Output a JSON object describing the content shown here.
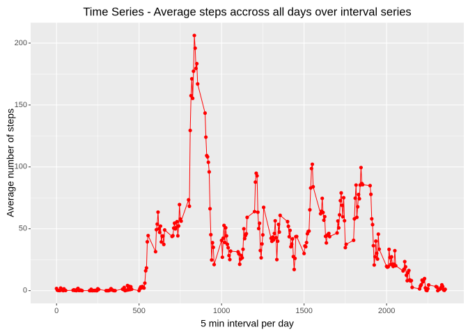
{
  "chart_data": {
    "type": "line",
    "title": "Time Series - Average steps accross all days over interval series",
    "xlabel": "5 min interval per day",
    "ylabel": "Average number of steps",
    "x": [
      0,
      5,
      10,
      15,
      20,
      25,
      30,
      35,
      40,
      45,
      50,
      55,
      100,
      105,
      110,
      115,
      120,
      125,
      130,
      135,
      140,
      145,
      150,
      155,
      200,
      205,
      210,
      215,
      220,
      225,
      230,
      235,
      240,
      245,
      250,
      255,
      300,
      305,
      310,
      315,
      320,
      325,
      330,
      335,
      340,
      345,
      350,
      355,
      400,
      405,
      410,
      415,
      420,
      425,
      430,
      435,
      440,
      445,
      450,
      455,
      500,
      505,
      510,
      515,
      520,
      525,
      530,
      535,
      540,
      545,
      550,
      555,
      600,
      605,
      610,
      615,
      620,
      625,
      630,
      635,
      640,
      645,
      650,
      655,
      700,
      705,
      710,
      715,
      720,
      725,
      730,
      735,
      740,
      745,
      750,
      755,
      800,
      805,
      810,
      815,
      820,
      825,
      830,
      835,
      840,
      845,
      850,
      855,
      900,
      905,
      910,
      915,
      920,
      925,
      930,
      935,
      940,
      945,
      950,
      955,
      1000,
      1005,
      1010,
      1015,
      1020,
      1025,
      1030,
      1035,
      1040,
      1045,
      1050,
      1055,
      1100,
      1105,
      1110,
      1115,
      1120,
      1125,
      1130,
      1135,
      1140,
      1145,
      1150,
      1155,
      1200,
      1205,
      1210,
      1215,
      1220,
      1225,
      1230,
      1235,
      1240,
      1245,
      1250,
      1255,
      1300,
      1305,
      1310,
      1315,
      1320,
      1325,
      1330,
      1335,
      1340,
      1345,
      1350,
      1355,
      1400,
      1405,
      1410,
      1415,
      1420,
      1425,
      1430,
      1435,
      1440,
      1445,
      1450,
      1455,
      1500,
      1505,
      1510,
      1515,
      1520,
      1525,
      1530,
      1535,
      1540,
      1545,
      1550,
      1555,
      1600,
      1605,
      1610,
      1615,
      1620,
      1625,
      1630,
      1635,
      1640,
      1645,
      1650,
      1655,
      1700,
      1705,
      1710,
      1715,
      1720,
      1725,
      1730,
      1735,
      1740,
      1745,
      1750,
      1755,
      1800,
      1805,
      1810,
      1815,
      1820,
      1825,
      1830,
      1835,
      1840,
      1845,
      1850,
      1855,
      1900,
      1905,
      1910,
      1915,
      1920,
      1925,
      1930,
      1935,
      1940,
      1945,
      1950,
      1955,
      2000,
      2005,
      2010,
      2015,
      2020,
      2025,
      2030,
      2035,
      2040,
      2045,
      2050,
      2055,
      2100,
      2105,
      2110,
      2115,
      2120,
      2125,
      2130,
      2135,
      2140,
      2145,
      2150,
      2155,
      2200,
      2205,
      2210,
      2215,
      2220,
      2225,
      2230,
      2235,
      2240,
      2245,
      2250,
      2255,
      2300,
      2305,
      2310,
      2315,
      2320,
      2325,
      2330,
      2335,
      2340,
      2345,
      2350,
      2355
    ],
    "series": [
      {
        "name": "steps",
        "color": "#ff0000",
        "values": [
          1.72,
          0.34,
          0.13,
          0.15,
          0.08,
          2.09,
          0.53,
          0.87,
          0,
          1.47,
          0.3,
          0.13,
          0.32,
          0.68,
          0.15,
          0.34,
          0,
          1.11,
          1.83,
          0.17,
          0.17,
          0.38,
          0.26,
          0,
          0,
          0,
          1.13,
          0,
          0,
          0.13,
          0,
          0.23,
          0,
          0,
          1.55,
          0.94,
          0,
          0,
          0,
          0,
          0.21,
          0.62,
          1.62,
          0.58,
          0.49,
          0.08,
          0,
          0,
          1.19,
          0.94,
          2.57,
          0,
          0.34,
          0.36,
          4.11,
          0.66,
          3.49,
          0.83,
          3.11,
          1.11,
          0,
          1.57,
          3,
          2.25,
          3.32,
          2.96,
          2.09,
          6.06,
          16.02,
          18.34,
          39.45,
          44.49,
          31.49,
          49.26,
          53.77,
          63.45,
          49.96,
          47.08,
          52.15,
          39.34,
          44.02,
          44.17,
          37.36,
          49.04,
          43.81,
          44.38,
          50.51,
          54.51,
          49.92,
          50.98,
          55.68,
          44.32,
          52.26,
          69.55,
          57.85,
          56.15,
          73.38,
          68.21,
          129.43,
          157.53,
          171.15,
          155.4,
          177.3,
          206.17,
          195.92,
          179.57,
          183.4,
          167.02,
          143.45,
          124.04,
          109.11,
          108.11,
          103.72,
          95.97,
          66.21,
          45.23,
          24.79,
          38.75,
          34.98,
          21.06,
          40.57,
          26.98,
          42.42,
          52.66,
          38.92,
          50.79,
          44.28,
          37.42,
          34.7,
          28.34,
          25.09,
          31.94,
          31.36,
          29.68,
          21.32,
          25.55,
          28.38,
          26.47,
          33.43,
          49.98,
          42.04,
          44.6,
          46.04,
          59.19,
          63.87,
          87.7,
          94.85,
          92.77,
          63.4,
          50.17,
          54.47,
          32.42,
          26.53,
          37.74,
          45.06,
          67.28,
          42.34,
          39.89,
          43.26,
          40.98,
          46.25,
          56.43,
          42.75,
          25.13,
          39.96,
          53.55,
          47.32,
          60.81,
          55.75,
          51.96,
          43.58,
          48.7,
          35.47,
          37.55,
          41.85,
          27.51,
          17.11,
          26.08,
          43.62,
          43.77,
          30.02,
          36.08,
          35.49,
          38.85,
          45.96,
          47.75,
          48.13,
          65.32,
          82.91,
          98.66,
          102.11,
          83.96,
          62.13,
          64.13,
          74.55,
          63.17,
          56.91,
          59.77,
          43.87,
          38.57,
          44.66,
          45.45,
          46.21,
          43.68,
          46.62,
          56.3,
          50.72,
          61.23,
          72.72,
          78.94,
          68.94,
          59.66,
          75.09,
          56.51,
          34.77,
          37.45,
          40.68,
          58.02,
          74.7,
          85.32,
          59.26,
          67.77,
          77.7,
          74.25,
          85.34,
          99.45,
          86.58,
          85.6,
          84.87,
          77.83,
          58.04,
          53.36,
          36.33,
          20.72,
          27.4,
          40.02,
          30.21,
          25.55,
          45.66,
          33.53,
          19.62,
          19.02,
          19.34,
          33.34,
          26.81,
          21.17,
          27.3,
          21.34,
          19.55,
          21.32,
          32.3,
          20.15,
          15.94,
          17.23,
          23.45,
          19.25,
          12.45,
          8.02,
          14.66,
          16.3,
          8.68,
          7.79,
          8.13,
          2.62,
          1.45,
          3.68,
          4.81,
          8.51,
          7.08,
          8.7,
          9.75,
          2.21,
          0.32,
          0.11,
          1.6,
          4.6,
          3.3,
          2.85,
          0,
          0.83,
          0.96,
          1.58,
          2.6,
          4.7,
          3.3,
          0.64,
          0.23,
          1.08
        ]
      }
    ],
    "xlim": [
      -157,
      2468
    ],
    "ylim": [
      -10.3,
      216.5
    ],
    "xticks": [
      0,
      500,
      1000,
      1500,
      2000
    ],
    "yticks": [
      0,
      50,
      100,
      150,
      200
    ],
    "minor_xticks": [
      250,
      750,
      1250,
      1750,
      2250
    ],
    "minor_yticks": [
      25,
      75,
      125,
      175
    ],
    "grid": true
  }
}
